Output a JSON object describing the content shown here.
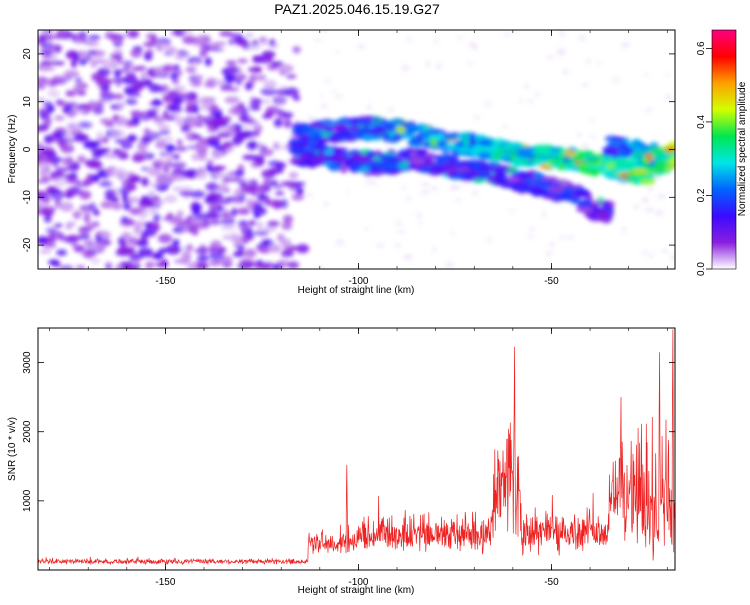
{
  "title": "PAZ1.2025.046.15.19.G27",
  "chart_data": [
    {
      "type": "heatmap",
      "xlabel": "Height of straight line (km)",
      "ylabel": "Frequency (Hz)",
      "xlim": [
        -183,
        -18
      ],
      "ylim": [
        -25,
        25
      ],
      "x_ticks": [
        -150,
        -100,
        -50
      ],
      "y_ticks": [
        -20,
        -10,
        0,
        10,
        20
      ],
      "colorbar": {
        "label": "Normalized spectral amplitude",
        "range": [
          0.0,
          0.65
        ],
        "ticks": [
          "0.0",
          "0.2",
          "0.4",
          "0.6"
        ],
        "colormap": [
          "#ffffff",
          "#8a1ee0",
          "#3b0aff",
          "#0064ff",
          "#00e6e6",
          "#00e650",
          "#d2ff00",
          "#ffa000",
          "#ff0000",
          "#ff0080"
        ]
      },
      "noise_region": {
        "x_range": [
          -183,
          -113
        ],
        "y_range": [
          -25,
          25
        ]
      },
      "signal_traces": [
        {
          "x": [
            -116,
            -105,
            -95,
            -85,
            -75,
            -65,
            -55,
            -45,
            -38,
            -30,
            -25,
            -20,
            -18
          ],
          "y": [
            3,
            4,
            4.5,
            3,
            1.5,
            0,
            -1.5,
            -2,
            -3,
            -4.5,
            -5,
            -2,
            -1
          ]
        },
        {
          "x": [
            -116,
            -105,
            -95,
            -85,
            -75,
            -65,
            -55,
            -45,
            -40,
            -35
          ],
          "y": [
            -1,
            -2,
            -3,
            -2,
            -4,
            -5,
            -7,
            -9,
            -12,
            -13
          ]
        },
        {
          "x": [
            -35,
            -30,
            -25,
            -20,
            -18
          ],
          "y": [
            1,
            0,
            -1,
            -2,
            -1
          ]
        }
      ]
    },
    {
      "type": "line",
      "xlabel": "Height of straight line (km)",
      "ylabel": "SNR (10 * v/v)",
      "xlim": [
        -183,
        -18
      ],
      "ylim": [
        0,
        3500
      ],
      "x_ticks": [
        -150,
        -100,
        -50
      ],
      "y_ticks": [
        1000,
        2000,
        3000
      ],
      "color": "#ee2222",
      "segments": [
        {
          "x": [
            -183,
            -113
          ],
          "mean": 120,
          "amp": 70
        },
        {
          "x": [
            -113,
            -100
          ],
          "mean": 380,
          "amp": 300
        },
        {
          "x": [
            -100,
            -65
          ],
          "mean": 500,
          "amp": 500
        },
        {
          "x": [
            -65,
            -58
          ],
          "mean": 1100,
          "amp": 1500
        },
        {
          "x": [
            -58,
            -35
          ],
          "mean": 520,
          "amp": 600
        },
        {
          "x": [
            -35,
            -28
          ],
          "mean": 1100,
          "amp": 1200
        },
        {
          "x": [
            -28,
            -18
          ],
          "mean": 900,
          "amp": 1800
        }
      ],
      "peaks": [
        {
          "x": -103,
          "y": 1520
        },
        {
          "x": -59.5,
          "y": 3230
        },
        {
          "x": -32,
          "y": 2500
        },
        {
          "x": -22,
          "y": 3150
        },
        {
          "x": -18.5,
          "y": 3480
        }
      ]
    }
  ]
}
